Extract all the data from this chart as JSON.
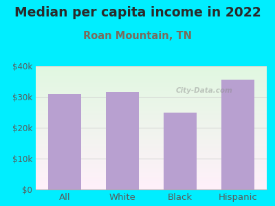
{
  "title": "Median per capita income in 2022",
  "subtitle": "Roan Mountain, TN",
  "categories": [
    "All",
    "White",
    "Black",
    "Hispanic"
  ],
  "values": [
    31000,
    31500,
    25000,
    35500
  ],
  "bar_color": "#b8a0d0",
  "background_outer": "#00eeff",
  "title_color": "#2a2a2a",
  "subtitle_color": "#7a6a5a",
  "tick_label_color": "#5a5a5a",
  "ylim": [
    0,
    40000
  ],
  "yticks": [
    0,
    10000,
    20000,
    30000,
    40000
  ],
  "ytick_labels": [
    "$0",
    "$10k",
    "$20k",
    "$30k",
    "$40k"
  ],
  "title_fontsize": 13.5,
  "subtitle_fontsize": 10.5,
  "watermark": "City-Data.com"
}
